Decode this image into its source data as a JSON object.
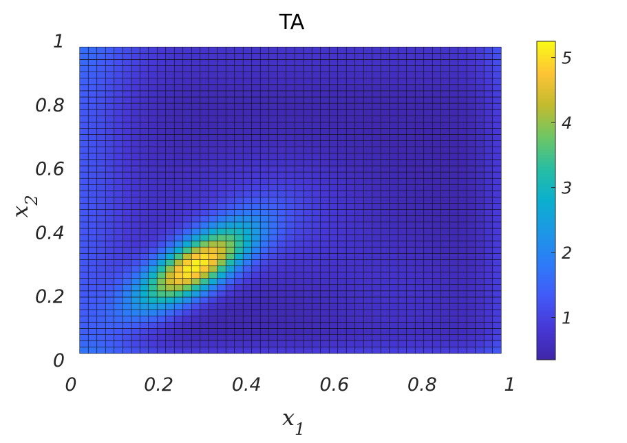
{
  "chart_data": {
    "type": "heatmap",
    "title": "TA",
    "xlabel": "x",
    "xlabel_subscript": "1",
    "ylabel": "x",
    "ylabel_subscript": "2",
    "xlim": [
      0,
      1
    ],
    "ylim": [
      0,
      1
    ],
    "xticks": [
      "0",
      "0.2",
      "0.4",
      "0.6",
      "0.8",
      "1"
    ],
    "yticks": [
      "0",
      "0.2",
      "0.4",
      "0.6",
      "0.8",
      "1"
    ],
    "grid": {
      "nx": 49,
      "ny": 49,
      "x_start": 0.02,
      "x_end": 0.98,
      "y_start": 0.02,
      "y_end": 0.98
    },
    "colorbar": {
      "min": 0.35,
      "max": 5.25,
      "ticks": [
        "1",
        "2",
        "3",
        "4",
        "5"
      ],
      "tick_values": [
        1,
        2,
        3,
        4,
        5
      ]
    },
    "colormap": "parula",
    "features": {
      "peak": {
        "x": 0.28,
        "y": 0.29,
        "value": 5.25
      },
      "low_regions": [
        {
          "x": 0.55,
          "y": 0.85,
          "value": 0.4
        },
        {
          "x": 0.9,
          "y": 0.6,
          "value": 0.5
        },
        {
          "x": 0.55,
          "y": 0.08,
          "value": 0.6
        }
      ]
    }
  }
}
